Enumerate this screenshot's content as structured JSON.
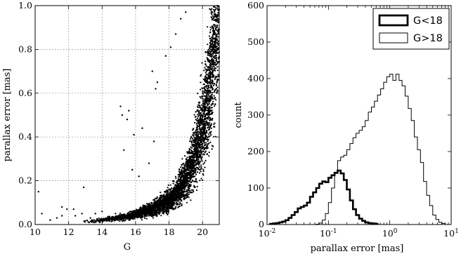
{
  "chart_data": [
    {
      "type": "scatter",
      "title": "",
      "xlabel": "G",
      "ylabel": "parallax error [mas]",
      "xlim": [
        10,
        21
      ],
      "ylim": [
        0.0,
        1.0
      ],
      "x_ticks": [
        "10",
        "12",
        "14",
        "16",
        "18",
        "20"
      ],
      "y_ticks": [
        "0.0",
        "0.2",
        "0.4",
        "0.6",
        "0.8",
        "1.0"
      ],
      "grid": true,
      "point_color": "#000000",
      "series": [
        {
          "note_outliers": true,
          "points": [
            [
              10.2,
              0.15
            ],
            [
              10.4,
              0.05
            ],
            [
              10.9,
              0.02
            ],
            [
              11.3,
              0.03
            ],
            [
              11.6,
              0.04
            ],
            [
              11.6,
              0.08
            ],
            [
              11.9,
              0.07
            ],
            [
              12.3,
              0.07
            ],
            [
              12.4,
              0.04
            ],
            [
              12.8,
              0.05
            ],
            [
              12.9,
              0.17
            ],
            [
              13.3,
              0.03
            ],
            [
              13.6,
              0.05
            ],
            [
              14.0,
              0.06
            ],
            [
              14.4,
              0.03
            ],
            [
              14.8,
              0.05
            ],
            [
              15.1,
              0.54
            ],
            [
              15.2,
              0.5
            ],
            [
              15.3,
              0.34
            ],
            [
              15.5,
              0.48
            ],
            [
              15.6,
              0.52
            ],
            [
              15.9,
              0.41
            ],
            [
              16.4,
              0.44
            ],
            [
              17.0,
              0.7
            ],
            [
              17.2,
              0.62
            ],
            [
              17.3,
              0.65
            ],
            [
              17.8,
              0.77
            ],
            [
              18.1,
              0.81
            ],
            [
              18.4,
              0.87
            ],
            [
              18.7,
              0.94
            ],
            [
              19.0,
              0.97
            ],
            [
              16.8,
              0.28
            ],
            [
              17.1,
              0.38
            ],
            [
              16.2,
              0.22
            ],
            [
              15.8,
              0.25
            ]
          ]
        }
      ],
      "trend": {
        "description": "dense band; parallax error rises steeply with G",
        "center": [
          [
            13.0,
            0.015
          ],
          [
            14.0,
            0.02
          ],
          [
            15.0,
            0.03
          ],
          [
            16.0,
            0.045
          ],
          [
            17.0,
            0.07
          ],
          [
            18.0,
            0.11
          ],
          [
            18.5,
            0.15
          ],
          [
            19.0,
            0.21
          ],
          [
            19.5,
            0.31
          ],
          [
            20.0,
            0.45
          ],
          [
            20.3,
            0.57
          ],
          [
            20.5,
            0.68
          ],
          [
            20.7,
            0.83
          ],
          [
            20.85,
            0.97
          ]
        ]
      }
    },
    {
      "type": "histogram",
      "title": "",
      "xlabel": "parallax error [mas]",
      "ylabel": "count",
      "x_scale": "log",
      "xlim": [
        0.01,
        10
      ],
      "ylim": [
        0,
        600
      ],
      "x_tick_labels": [
        "10-2",
        "10-1",
        "100",
        "101"
      ],
      "y_ticks": [
        "0",
        "100",
        "200",
        "300",
        "400",
        "500",
        "600"
      ],
      "grid": false,
      "legend_placement": "top-right",
      "series": [
        {
          "name": "G<18",
          "line_width": "thick",
          "bins_log10_start": -1.95,
          "bin_width_log10": 0.05,
          "counts": [
            2,
            3,
            4,
            6,
            8,
            12,
            18,
            26,
            34,
            44,
            48,
            52,
            60,
            76,
            88,
            100,
            112,
            118,
            116,
            128,
            135,
            142,
            148,
            140,
            122,
            96,
            66,
            42,
            26,
            16,
            10,
            6,
            4,
            3,
            2
          ]
        },
        {
          "name": "G>18",
          "line_width": "thin",
          "bins_log10_start": -1.2,
          "bin_width_log10": 0.05,
          "counts": [
            1,
            4,
            12,
            30,
            60,
            100,
            140,
            175,
            185,
            190,
            205,
            222,
            238,
            250,
            258,
            268,
            285,
            308,
            322,
            338,
            355,
            372,
            390,
            405,
            412,
            395,
            412,
            395,
            380,
            352,
            318,
            285,
            240,
            205,
            170,
            118,
            80,
            52,
            26,
            14,
            6,
            3
          ]
        }
      ]
    }
  ]
}
